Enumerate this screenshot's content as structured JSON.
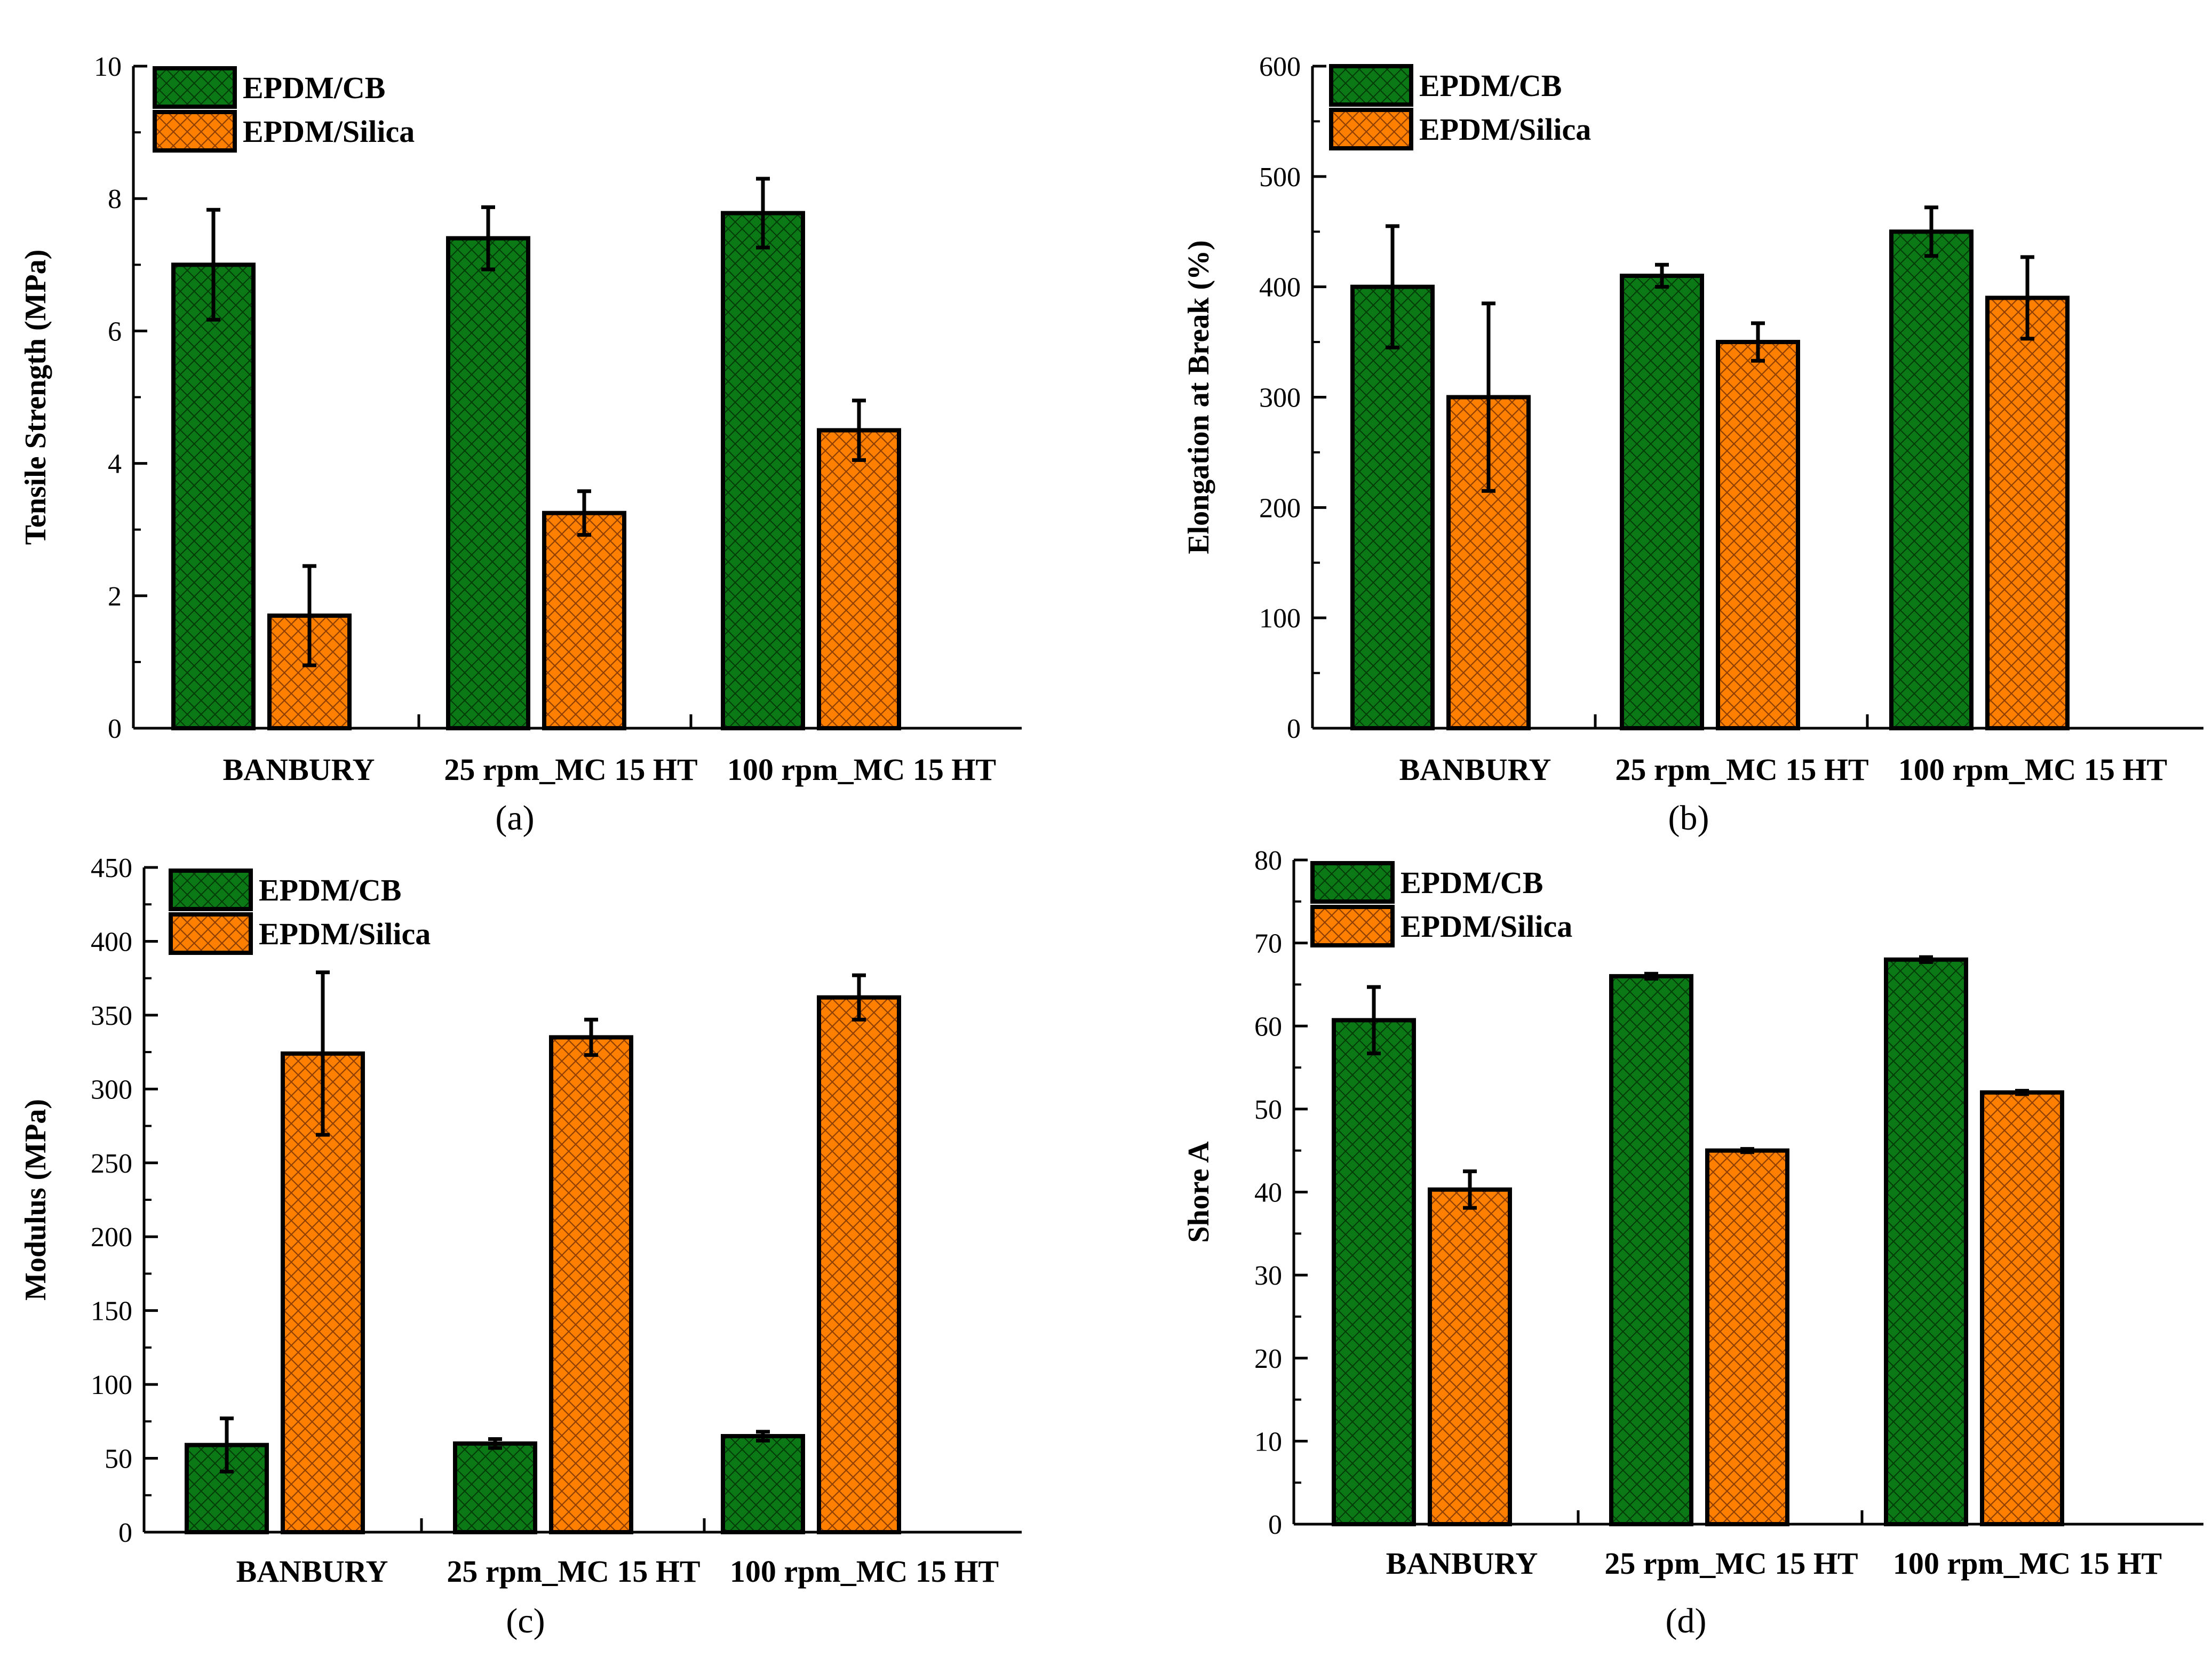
{
  "figure": {
    "series_names": [
      "EPDM/CB",
      "EPDM/Silica"
    ],
    "colors": {
      "cb": "#0b7a16",
      "silica": "#ff8000",
      "outline": "#000000"
    }
  },
  "chart_data": [
    {
      "type": "bar",
      "panel": "(a)",
      "ylabel": "Tensile Strength (MPa)",
      "xlabel": "",
      "ylim": [
        0,
        10
      ],
      "yticks": [
        0,
        2,
        4,
        6,
        8,
        10
      ],
      "categories": [
        "BANBURY",
        "25 rpm_MC 15 HT",
        "100 rpm_MC 15 HT"
      ],
      "series": [
        {
          "name": "EPDM/CB",
          "values": [
            7.0,
            7.4,
            7.78
          ],
          "errors": [
            0.83,
            0.47,
            0.52
          ]
        },
        {
          "name": "EPDM/Silica",
          "values": [
            1.7,
            3.25,
            4.5
          ],
          "errors": [
            0.75,
            0.33,
            0.45
          ]
        }
      ],
      "legend": "top-left"
    },
    {
      "type": "bar",
      "panel": "(b)",
      "ylabel": "Elongation at Break (%)",
      "xlabel": "",
      "ylim": [
        0,
        600
      ],
      "yticks": [
        0,
        100,
        200,
        300,
        400,
        500,
        600
      ],
      "categories": [
        "BANBURY",
        "25 rpm_MC 15 HT",
        "100 rpm_MC 15 HT"
      ],
      "series": [
        {
          "name": "EPDM/CB",
          "values": [
            400,
            410,
            450
          ],
          "errors": [
            55,
            10,
            22
          ]
        },
        {
          "name": "EPDM/Silica",
          "values": [
            300,
            350,
            390
          ],
          "errors": [
            85,
            17,
            37
          ]
        }
      ],
      "legend": "top-left"
    },
    {
      "type": "bar",
      "panel": "(c)",
      "ylabel": "Modulus (MPa)",
      "xlabel": "",
      "ylim": [
        0,
        450
      ],
      "yticks": [
        0,
        50,
        100,
        150,
        200,
        250,
        300,
        350,
        400,
        450
      ],
      "categories": [
        "BANBURY",
        "25 rpm_MC 15 HT",
        "100 rpm_MC 15 HT"
      ],
      "series": [
        {
          "name": "EPDM/CB",
          "values": [
            59,
            60,
            65
          ],
          "errors": [
            18,
            3,
            3
          ]
        },
        {
          "name": "EPDM/Silica",
          "values": [
            324,
            335,
            362
          ],
          "errors": [
            55,
            12,
            15
          ]
        }
      ],
      "legend": "top-left"
    },
    {
      "type": "bar",
      "panel": "(d)",
      "ylabel": "Shore A",
      "xlabel": "",
      "ylim": [
        0,
        80
      ],
      "yticks": [
        0,
        10,
        20,
        30,
        40,
        50,
        60,
        70,
        80
      ],
      "categories": [
        "BANBURY",
        "25 rpm_MC 15 HT",
        "100 rpm_MC 15 HT"
      ],
      "series": [
        {
          "name": "EPDM/CB",
          "values": [
            60.7,
            66.0,
            68.0
          ],
          "errors": [
            4.0,
            0.3,
            0.3
          ]
        },
        {
          "name": "EPDM/Silica",
          "values": [
            40.3,
            45.0,
            52.0
          ],
          "errors": [
            2.2,
            0.2,
            0.2
          ]
        }
      ],
      "legend": "top-left"
    }
  ]
}
